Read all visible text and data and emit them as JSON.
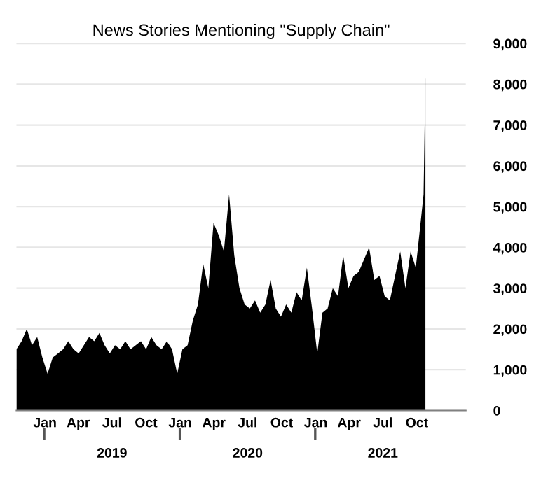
{
  "chart_data": {
    "type": "area",
    "title": "News Stories Mentioning \"Supply Chain\"",
    "x": [
      "2018-10-16",
      "2018-10-30",
      "2018-11-13",
      "2018-11-27",
      "2018-12-11",
      "2018-12-25",
      "2019-01-08",
      "2019-01-22",
      "2019-02-05",
      "2019-02-19",
      "2019-03-05",
      "2019-03-19",
      "2019-04-02",
      "2019-04-16",
      "2019-04-30",
      "2019-05-14",
      "2019-05-28",
      "2019-06-11",
      "2019-06-25",
      "2019-07-09",
      "2019-07-23",
      "2019-08-06",
      "2019-08-20",
      "2019-09-03",
      "2019-09-17",
      "2019-10-01",
      "2019-10-15",
      "2019-10-29",
      "2019-11-12",
      "2019-11-26",
      "2019-12-10",
      "2019-12-24",
      "2020-01-07",
      "2020-01-21",
      "2020-02-04",
      "2020-02-18",
      "2020-03-03",
      "2020-03-17",
      "2020-03-31",
      "2020-04-14",
      "2020-04-28",
      "2020-05-12",
      "2020-05-26",
      "2020-06-09",
      "2020-06-23",
      "2020-07-07",
      "2020-07-21",
      "2020-08-04",
      "2020-08-18",
      "2020-09-01",
      "2020-09-15",
      "2020-09-29",
      "2020-10-13",
      "2020-10-27",
      "2020-11-10",
      "2020-11-24",
      "2020-12-08",
      "2020-12-22",
      "2021-01-05",
      "2021-01-19",
      "2021-02-02",
      "2021-02-16",
      "2021-03-02",
      "2021-03-16",
      "2021-03-30",
      "2021-04-13",
      "2021-04-27",
      "2021-05-11",
      "2021-05-25",
      "2021-06-08",
      "2021-06-22",
      "2021-07-06",
      "2021-07-20",
      "2021-08-03",
      "2021-08-17",
      "2021-08-31",
      "2021-09-14",
      "2021-09-28",
      "2021-10-12",
      "2021-10-19",
      "2021-10-24"
    ],
    "series": [
      {
        "color": "#000000",
        "values": [
          1500,
          1700,
          2000,
          1600,
          1800,
          1300,
          900,
          1300,
          1400,
          1500,
          1700,
          1500,
          1400,
          1600,
          1800,
          1700,
          1900,
          1600,
          1400,
          1600,
          1500,
          1700,
          1500,
          1600,
          1700,
          1500,
          1800,
          1600,
          1500,
          1700,
          1500,
          900,
          1500,
          1600,
          2200,
          2600,
          3600,
          3000,
          4600,
          4300,
          3900,
          5300,
          3800,
          3000,
          2600,
          2500,
          2700,
          2400,
          2600,
          3200,
          2500,
          2300,
          2600,
          2400,
          2900,
          2700,
          3500,
          2500,
          1400,
          2400,
          2500,
          3000,
          2800,
          3800,
          3000,
          3300,
          3400,
          3700,
          4000,
          3200,
          3300,
          2800,
          2700,
          3300,
          3900,
          3000,
          3900,
          3500,
          4700,
          5300,
          8200
        ]
      }
    ],
    "xlim": [
      "2018-10-16",
      "2022-02-10"
    ],
    "xticks": [
      {
        "value": "2019-01-01",
        "label": "Jan"
      },
      {
        "value": "2019-04-01",
        "label": "Apr"
      },
      {
        "value": "2019-07-01",
        "label": "Jul"
      },
      {
        "value": "2019-10-01",
        "label": "Oct"
      },
      {
        "value": "2020-01-01",
        "label": "Jan"
      },
      {
        "value": "2020-04-01",
        "label": "Apr"
      },
      {
        "value": "2020-07-01",
        "label": "Jul"
      },
      {
        "value": "2020-10-01",
        "label": "Oct"
      },
      {
        "value": "2021-01-01",
        "label": "Jan"
      },
      {
        "value": "2021-04-01",
        "label": "Apr"
      },
      {
        "value": "2021-07-01",
        "label": "Jul"
      },
      {
        "value": "2021-10-01",
        "label": "Oct"
      }
    ],
    "x2lim": [
      "2018-10-16",
      "2022-02-10"
    ],
    "x2ticks": [
      {
        "value": "2019-07-01",
        "label": "2019"
      },
      {
        "value": "2020-07-01",
        "label": "2020"
      },
      {
        "value": "2021-07-01",
        "label": "2021"
      }
    ],
    "ylim": [
      0,
      9000
    ],
    "yticks": [
      0,
      {
        "value": 1000,
        "label": "1,000"
      },
      {
        "value": 2000,
        "label": "2,000"
      },
      {
        "value": 3000,
        "label": "3,000"
      },
      {
        "value": 4000,
        "label": "4,000"
      },
      {
        "value": 5000,
        "label": "5,000"
      },
      {
        "value": 6000,
        "label": "6,000"
      },
      {
        "value": 7000,
        "label": "7,000"
      },
      {
        "value": 8000,
        "label": "8,000"
      },
      {
        "value": 9000,
        "label": "9,000"
      }
    ],
    "grid": "y",
    "legend": false
  }
}
